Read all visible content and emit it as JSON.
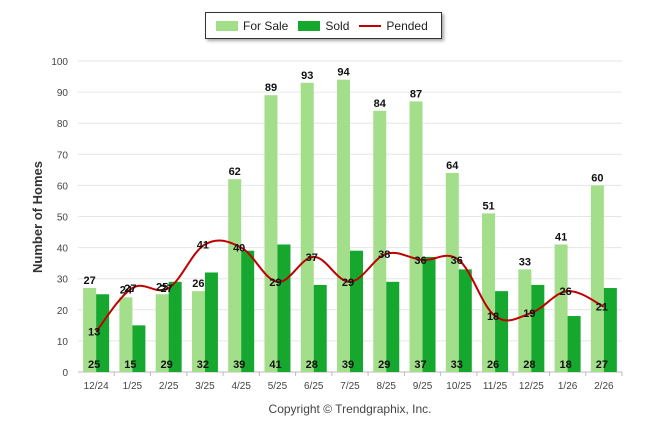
{
  "legend": {
    "for_sale": "For Sale",
    "sold": "Sold",
    "pended": "Pended"
  },
  "colors": {
    "for_sale": "#a3de8a",
    "sold": "#16a82e",
    "pended": "#c00000",
    "grid": "#e6e6e6"
  },
  "copyright": "Copyright © Trendgraphix, Inc.",
  "chart_data": {
    "type": "bar",
    "ylabel": "Number of Homes",
    "xlabel": "",
    "ylim": [
      0,
      100
    ],
    "yticks": [
      0,
      10,
      20,
      30,
      40,
      50,
      60,
      70,
      80,
      90,
      100
    ],
    "grid": true,
    "legend_position": "top-center",
    "categories": [
      "12/24",
      "1/25",
      "2/25",
      "3/25",
      "4/25",
      "5/25",
      "6/25",
      "7/25",
      "8/25",
      "9/25",
      "10/25",
      "11/25",
      "12/25",
      "1/26",
      "2/26"
    ],
    "series": [
      {
        "name": "For Sale",
        "type": "bar",
        "values": [
          27,
          24,
          25,
          26,
          62,
          89,
          93,
          94,
          84,
          87,
          64,
          51,
          33,
          41,
          60
        ]
      },
      {
        "name": "Sold",
        "type": "bar",
        "values": [
          25,
          15,
          29,
          32,
          39,
          41,
          28,
          39,
          29,
          37,
          33,
          26,
          28,
          18,
          27
        ]
      },
      {
        "name": "Pended",
        "type": "line",
        "values": [
          13,
          27,
          27,
          41,
          40,
          29,
          37,
          29,
          38,
          36,
          36,
          18,
          19,
          26,
          21
        ]
      }
    ]
  }
}
